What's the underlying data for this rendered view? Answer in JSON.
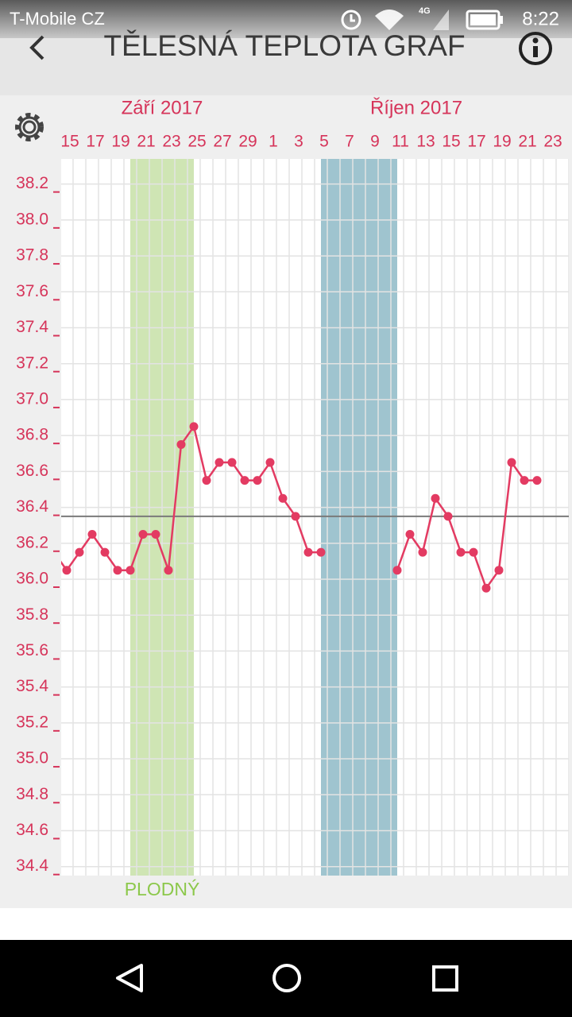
{
  "status_bar": {
    "carrier": "T-Mobile CZ",
    "network": "4G",
    "time": "8:22"
  },
  "header": {
    "title": "TĚLESNÁ TEPLOTA GRAF"
  },
  "chart_data": {
    "type": "line",
    "months": [
      "Září 2017",
      "Říjen 2017"
    ],
    "categories": [
      null,
      "15",
      null,
      "17",
      null,
      "19",
      null,
      "21",
      null,
      "23",
      null,
      "25",
      null,
      "27",
      null,
      "29",
      null,
      "1",
      null,
      "3",
      null,
      "5",
      null,
      "7",
      null,
      "9",
      null,
      "11",
      null,
      "13",
      null,
      "15",
      null,
      "17",
      null,
      "19",
      null,
      "21",
      null,
      "23",
      null
    ],
    "series": [
      {
        "color": "#e33b62",
        "values": [
          36.15,
          36.05,
          36.15,
          36.25,
          36.15,
          36.05,
          36.05,
          36.25,
          36.25,
          36.05,
          36.75,
          36.85,
          36.55,
          36.65,
          36.65,
          36.55,
          36.55,
          36.65,
          36.45,
          36.35,
          36.15,
          36.15,
          null,
          null,
          null,
          null,
          null,
          36.05,
          36.25,
          36.15,
          36.45,
          36.35,
          36.15,
          36.15,
          35.95,
          36.05,
          36.65,
          36.55,
          36.55,
          null,
          null
        ]
      }
    ],
    "ylim": [
      34.35,
      38.34
    ],
    "yticks": [
      34.4,
      34.6,
      34.8,
      {
        "value": 35,
        "label": "35.0"
      },
      35.2,
      35.4,
      35.6,
      35.8,
      {
        "value": 36,
        "label": "36.0"
      },
      36.2,
      36.4,
      36.6,
      36.8,
      {
        "value": 37,
        "label": "37.0"
      },
      37.2,
      37.4,
      37.6,
      37.8,
      {
        "value": 38,
        "label": "38.0"
      },
      38.2
    ],
    "grid": true,
    "reference_line": 36.35,
    "reference_color": "#7a7a7a",
    "bands": [
      {
        "label": "PLODNÝ",
        "from": 6,
        "to": 11,
        "color": "#cfe5b4"
      },
      {
        "from": 21,
        "to": 27,
        "color": "#9fc4cf"
      }
    ]
  }
}
